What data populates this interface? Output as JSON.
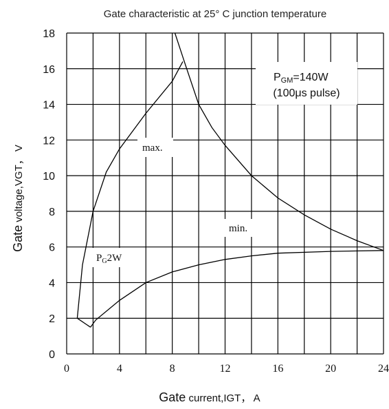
{
  "chart_data": {
    "type": "line",
    "title": "Gate characteristic at 25° C junction temperature",
    "xlabel": {
      "prefix": "Gate",
      "rest": " current,IGT， A"
    },
    "ylabel": {
      "prefix": "Gate",
      "rest": " voltage,VGT， V"
    },
    "xlim": [
      0,
      24
    ],
    "ylim": [
      0,
      18
    ],
    "x_ticks": [
      0,
      2,
      4,
      6,
      8,
      10,
      12,
      14,
      16,
      18,
      20,
      22,
      24
    ],
    "x_tick_labels": [
      "0",
      "",
      "4",
      "",
      "8",
      "",
      "12",
      "",
      "16",
      "",
      "20",
      "",
      "24"
    ],
    "y_ticks": [
      0,
      2,
      4,
      6,
      8,
      10,
      12,
      14,
      16,
      18
    ],
    "y_tick_labels": [
      "0",
      "2",
      "4",
      "6",
      "8",
      "10",
      "12",
      "14",
      "16",
      "18"
    ],
    "grid": true,
    "series": [
      {
        "name": "max.",
        "points": [
          [
            0.8,
            2.0
          ],
          [
            1.2,
            5.0
          ],
          [
            2.0,
            8.0
          ],
          [
            3.0,
            10.2
          ],
          [
            4.0,
            11.5
          ],
          [
            6.0,
            13.5
          ],
          [
            8.0,
            15.3
          ],
          [
            8.8,
            16.4
          ]
        ]
      },
      {
        "name": "min.",
        "points": [
          [
            1.8,
            1.5
          ],
          [
            2.2,
            1.9
          ],
          [
            4.0,
            3.0
          ],
          [
            6.0,
            4.0
          ],
          [
            8.0,
            4.6
          ],
          [
            10.0,
            5.0
          ],
          [
            12.0,
            5.3
          ],
          [
            14.0,
            5.5
          ],
          [
            16.0,
            5.65
          ],
          [
            20.0,
            5.75
          ],
          [
            24.0,
            5.8
          ]
        ]
      },
      {
        "name": "PGM=140W",
        "points": [
          [
            8.2,
            18.0
          ],
          [
            9.0,
            16.2
          ],
          [
            10.0,
            14.0
          ],
          [
            11.0,
            12.7
          ],
          [
            12.0,
            11.7
          ],
          [
            14.0,
            10.0
          ],
          [
            16.0,
            8.75
          ],
          [
            18.0,
            7.8
          ],
          [
            20.0,
            7.0
          ],
          [
            22.0,
            6.35
          ],
          [
            24.0,
            5.8
          ]
        ]
      },
      {
        "name": "PG2W",
        "points": [
          [
            0.8,
            2.0
          ],
          [
            1.8,
            1.5
          ]
        ]
      }
    ],
    "annotations": {
      "max": "max.",
      "min": "min.",
      "pg_main": "P",
      "pg_sub": "G",
      "pg_rest": "2W",
      "pgm_main": "P",
      "pgm_sub": "GM",
      "pgm_rest": "=140W",
      "pulse": "(100μs  pulse)"
    }
  }
}
